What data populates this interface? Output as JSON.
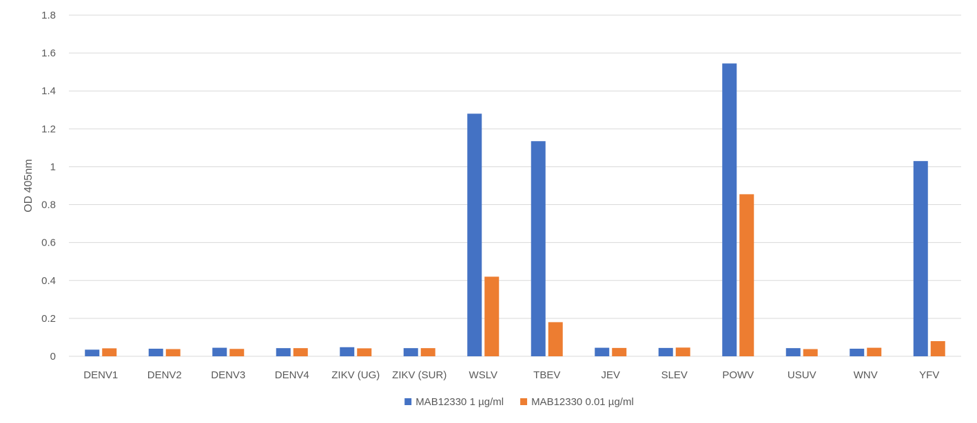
{
  "chart_data": {
    "type": "bar",
    "title": "",
    "xlabel": "",
    "ylabel": "OD 405nm",
    "ylim": [
      0,
      1.8
    ],
    "yticks": [
      0,
      0.2,
      0.4,
      0.6,
      0.8,
      1,
      1.2,
      1.4,
      1.6,
      1.8
    ],
    "ytick_labels": [
      "0",
      "0.2",
      "0.4",
      "0.6",
      "0.8",
      "1",
      "1.2",
      "1.4",
      "1.6",
      "1.8"
    ],
    "grid": true,
    "legend_position": "bottom",
    "categories": [
      "DENV1",
      "DENV2",
      "DENV3",
      "DENV4",
      "ZIKV (UG)",
      "ZIKV (SUR)",
      "WSLV",
      "TBEV",
      "JEV",
      "SLEV",
      "POWV",
      "USUV",
      "WNV",
      "YFV"
    ],
    "series": [
      {
        "name": "MAB12330 1 µg/ml",
        "color": "#4472C4",
        "values": [
          0.035,
          0.04,
          0.045,
          0.043,
          0.048,
          0.043,
          1.28,
          1.135,
          0.045,
          0.044,
          1.545,
          0.043,
          0.04,
          1.03
        ]
      },
      {
        "name": "MAB12330 0.01 µg/ml",
        "color": "#ED7D31",
        "values": [
          0.042,
          0.038,
          0.039,
          0.043,
          0.042,
          0.043,
          0.42,
          0.18,
          0.044,
          0.046,
          0.855,
          0.038,
          0.045,
          0.08
        ]
      }
    ]
  },
  "colors": {
    "grid": "#d9d9d9",
    "axis": "#d9d9d9",
    "text": "#595959"
  }
}
